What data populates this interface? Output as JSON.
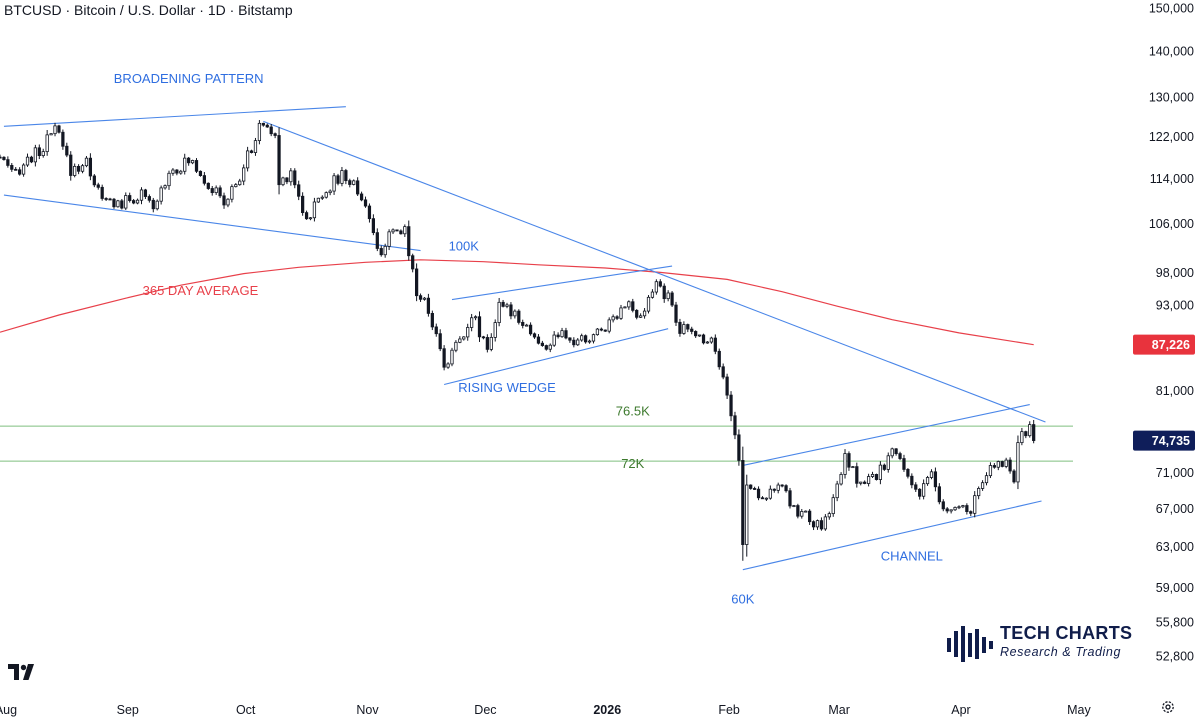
{
  "title": "BTCUSD · Bitcoin / U.S. Dollar · 1D · Bitstamp",
  "brand": {
    "name": "TECH CHARTS",
    "tagline": "Research & Trading"
  },
  "colors": {
    "up": "#131722",
    "down": "#131722",
    "up_body": "#ffffff",
    "down_body": "#131722",
    "trendline": "#4a86e8",
    "annotation_blue": "#2f6ee0",
    "ma": "#e8404a",
    "level": "#7fbf7f",
    "level_text": "#3d7a2e",
    "last_price_bg": "#0f1e5a",
    "ma_badge_bg": "#e8333d",
    "axis_text": "#131722"
  },
  "chart_data": {
    "type": "candlestick",
    "symbol": "BTCUSD",
    "timeframe": "1D",
    "y_scale": "log",
    "ylim": [
      50000,
      152000
    ],
    "x_range": [
      "2025-07-31",
      "2026-05-14"
    ],
    "y_ticks": [
      150000,
      140000,
      130000,
      122000,
      114000,
      106000,
      98000,
      93000,
      81000,
      71000,
      67000,
      63000,
      59000,
      55800,
      52800
    ],
    "x_ticks": [
      {
        "label": "Aug",
        "date": "2025-08-01",
        "bold": false
      },
      {
        "label": "Sep",
        "date": "2025-09-01",
        "bold": false
      },
      {
        "label": "Oct",
        "date": "2025-10-01",
        "bold": false
      },
      {
        "label": "Nov",
        "date": "2025-11-01",
        "bold": false
      },
      {
        "label": "Dec",
        "date": "2025-12-01",
        "bold": false
      },
      {
        "label": "2026",
        "date": "2026-01-01",
        "bold": true
      },
      {
        "label": "Feb",
        "date": "2026-02-01",
        "bold": false
      },
      {
        "label": "Mar",
        "date": "2026-03-01",
        "bold": false
      },
      {
        "label": "Apr",
        "date": "2026-04-01",
        "bold": false
      },
      {
        "label": "May",
        "date": "2026-05-01",
        "bold": false
      }
    ],
    "last_price": 74735,
    "last_price_label": "74,735",
    "ma_value": 87226,
    "ma_label": "87,226",
    "moving_average": {
      "name": "365 DAY AVERAGE",
      "points": [
        [
          "2025-07-31",
          89000
        ],
        [
          "2025-08-15",
          91500
        ],
        [
          "2025-09-01",
          94000
        ],
        [
          "2025-09-15",
          96000
        ],
        [
          "2025-10-01",
          97800
        ],
        [
          "2025-10-15",
          98800
        ],
        [
          "2025-11-01",
          99600
        ],
        [
          "2025-11-15",
          100000
        ],
        [
          "2025-12-01",
          99700
        ],
        [
          "2025-12-15",
          99200
        ],
        [
          "2026-01-01",
          98700
        ],
        [
          "2026-01-15",
          98000
        ],
        [
          "2026-02-01",
          96900
        ],
        [
          "2026-02-15",
          95000
        ],
        [
          "2026-03-01",
          92800
        ],
        [
          "2026-03-15",
          90800
        ],
        [
          "2026-04-01",
          88900
        ],
        [
          "2026-04-20",
          87226
        ]
      ]
    },
    "trendlines": [
      {
        "name": "broadening-top",
        "from": [
          "2025-08-01",
          124000
        ],
        "to": [
          "2025-10-27",
          128000
        ]
      },
      {
        "name": "broadening-bottom",
        "from": [
          "2025-08-01",
          111000
        ],
        "to": [
          "2025-11-15",
          101500
        ]
      },
      {
        "name": "major-downtrend",
        "from": [
          "2025-10-06",
          125000
        ],
        "to": [
          "2026-04-23",
          77000
        ]
      },
      {
        "name": "wedge-top",
        "from": [
          "2025-11-23",
          93800
        ],
        "to": [
          "2026-01-18",
          99000
        ]
      },
      {
        "name": "wedge-bottom",
        "from": [
          "2025-11-21",
          81800
        ],
        "to": [
          "2026-01-17",
          89500
        ]
      },
      {
        "name": "channel-top",
        "from": [
          "2026-02-05",
          71800
        ],
        "to": [
          "2026-04-19",
          79200
        ]
      },
      {
        "name": "channel-bottom",
        "from": [
          "2026-02-05",
          60700
        ],
        "to": [
          "2026-04-22",
          67800
        ]
      }
    ],
    "levels": [
      {
        "name": "76.5K",
        "value": 76500
      },
      {
        "name": "72K",
        "value": 72300
      }
    ],
    "annotations": [
      {
        "text": "BROADENING PATTERN",
        "date": "2025-09-17",
        "price": 133000,
        "color": "blue"
      },
      {
        "text": "100K",
        "date": "2025-11-26",
        "price": 101500,
        "color": "blue"
      },
      {
        "text": "365 DAY AVERAGE",
        "date": "2025-09-20",
        "price": 94500,
        "color": "red"
      },
      {
        "text": "RISING WEDGE",
        "date": "2025-12-07",
        "price": 80800,
        "color": "blue"
      },
      {
        "text": "76.5K",
        "date": "2026-01-08",
        "price": 77800,
        "color": "green"
      },
      {
        "text": "72K",
        "date": "2026-01-08",
        "price": 71500,
        "color": "green"
      },
      {
        "text": "CHANNEL",
        "date": "2026-03-20",
        "price": 61600,
        "color": "blue"
      },
      {
        "text": "60K",
        "date": "2026-02-05",
        "price": 57500,
        "color": "blue"
      }
    ],
    "price_path": [
      [
        "2025-07-31",
        118000
      ],
      [
        "2025-08-03",
        114500
      ],
      [
        "2025-08-07",
        117500
      ],
      [
        "2025-08-10",
        119000
      ],
      [
        "2025-08-13",
        122000
      ],
      [
        "2025-08-14",
        123800
      ],
      [
        "2025-08-18",
        115500
      ],
      [
        "2025-08-22",
        117000
      ],
      [
        "2025-08-26",
        110000
      ],
      [
        "2025-08-31",
        109500
      ],
      [
        "2025-09-05",
        111000
      ],
      [
        "2025-09-08",
        108200
      ],
      [
        "2025-09-12",
        115500
      ],
      [
        "2025-09-18",
        117300
      ],
      [
        "2025-09-22",
        113000
      ],
      [
        "2025-09-26",
        109500
      ],
      [
        "2025-09-30",
        114000
      ],
      [
        "2025-10-03",
        120000
      ],
      [
        "2025-10-06",
        125000
      ],
      [
        "2025-10-09",
        121500
      ],
      [
        "2025-10-10",
        113000
      ],
      [
        "2025-10-13",
        115500
      ],
      [
        "2025-10-17",
        106500
      ],
      [
        "2025-10-21",
        111500
      ],
      [
        "2025-10-26",
        114500
      ],
      [
        "2025-10-29",
        113000
      ],
      [
        "2025-11-01",
        109500
      ],
      [
        "2025-11-04",
        101000
      ],
      [
        "2025-11-07",
        103500
      ],
      [
        "2025-11-11",
        105000
      ],
      [
        "2025-11-14",
        95000
      ],
      [
        "2025-11-17",
        92500
      ],
      [
        "2025-11-19",
        88500
      ],
      [
        "2025-11-21",
        84500
      ],
      [
        "2025-11-24",
        87000
      ],
      [
        "2025-11-28",
        91500
      ],
      [
        "2025-12-02",
        87000
      ],
      [
        "2025-12-05",
        92500
      ],
      [
        "2025-12-09",
        92000
      ],
      [
        "2025-12-12",
        90000
      ],
      [
        "2025-12-16",
        86500
      ],
      [
        "2025-12-20",
        88500
      ],
      [
        "2025-12-24",
        87500
      ],
      [
        "2025-12-28",
        88000
      ],
      [
        "2026-01-02",
        90500
      ],
      [
        "2026-01-06",
        93500
      ],
      [
        "2026-01-10",
        90500
      ],
      [
        "2026-01-14",
        96500
      ],
      [
        "2026-01-18",
        93000
      ],
      [
        "2026-01-20",
        89500
      ],
      [
        "2026-01-24",
        88500
      ],
      [
        "2026-01-28",
        88000
      ],
      [
        "2026-01-31",
        83500
      ],
      [
        "2026-02-02",
        77500
      ],
      [
        "2026-02-04",
        73000
      ],
      [
        "2026-02-05",
        63000
      ],
      [
        "2026-02-06",
        69500
      ],
      [
        "2026-02-10",
        68500
      ],
      [
        "2026-02-14",
        69500
      ],
      [
        "2026-02-18",
        67000
      ],
      [
        "2026-02-22",
        66000
      ],
      [
        "2026-02-25",
        64500
      ],
      [
        "2026-02-28",
        68000
      ],
      [
        "2026-03-03",
        72500
      ],
      [
        "2026-03-07",
        69500
      ],
      [
        "2026-03-11",
        70500
      ],
      [
        "2026-03-15",
        73500
      ],
      [
        "2026-03-18",
        71500
      ],
      [
        "2026-03-22",
        68500
      ],
      [
        "2026-03-25",
        70500
      ],
      [
        "2026-03-28",
        66500
      ],
      [
        "2026-03-31",
        67000
      ],
      [
        "2026-04-03",
        66500
      ],
      [
        "2026-04-06",
        68500
      ],
      [
        "2026-04-09",
        71500
      ],
      [
        "2026-04-13",
        72500
      ],
      [
        "2026-04-15",
        70500
      ],
      [
        "2026-04-16",
        74500
      ],
      [
        "2026-04-18",
        75500
      ],
      [
        "2026-04-19",
        77200
      ],
      [
        "2026-04-20",
        74735
      ]
    ]
  }
}
